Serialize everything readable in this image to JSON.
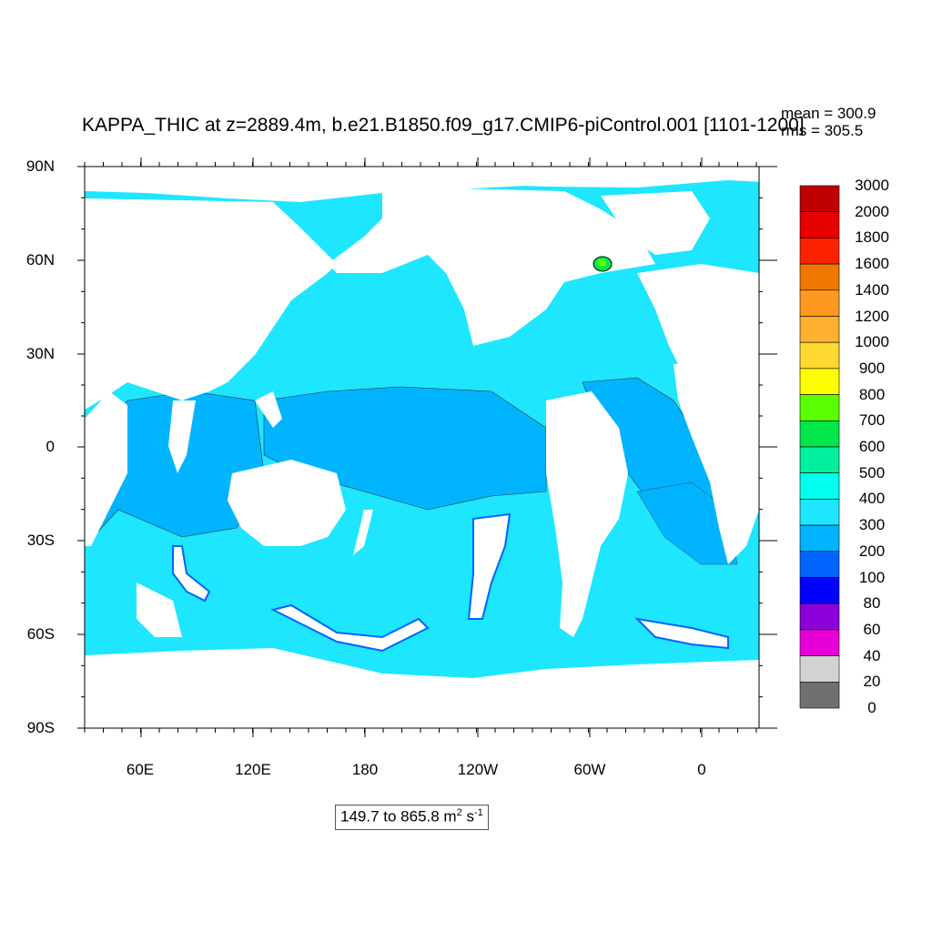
{
  "title": "KAPPA_THIC at z=2889.4m, b.e21.B1850.f09_g17.CMIP6-piControl.001 [1101-1200]",
  "stats": {
    "mean": "mean = 300.9",
    "rms": "rms = 305.5"
  },
  "range": {
    "text": "149.7 to 865.8 m",
    "unit_exp1": "2",
    "mid": " s",
    "unit_exp2": "-1"
  },
  "axes": {
    "y_ticks": [
      "90N",
      "60N",
      "30N",
      "0",
      "30S",
      "60S",
      "90S"
    ],
    "x_ticks": [
      "60E",
      "120E",
      "180",
      "120W",
      "60W",
      "0"
    ]
  },
  "colorbar": {
    "labels": [
      "3000",
      "2000",
      "1800",
      "1600",
      "1400",
      "1200",
      "1000",
      "900",
      "800",
      "700",
      "600",
      "500",
      "400",
      "300",
      "200",
      "100",
      "80",
      "60",
      "40",
      "20",
      "0"
    ],
    "colors": [
      "#c00000",
      "#e60000",
      "#ff2200",
      "#f07800",
      "#ff9820",
      "#ffb030",
      "#ffd830",
      "#ffff00",
      "#5aff00",
      "#00e64b",
      "#00f0a0",
      "#00ffee",
      "#1ee6ff",
      "#00b4ff",
      "#0064ff",
      "#0000ff",
      "#8c00dc",
      "#e600d7",
      "#d2d2d2",
      "#707070"
    ]
  },
  "legend_colors": {
    "land": "#ffffff",
    "low": "#00b4ff",
    "mid": "#1ee6ff",
    "dark": "#0064ff"
  }
}
